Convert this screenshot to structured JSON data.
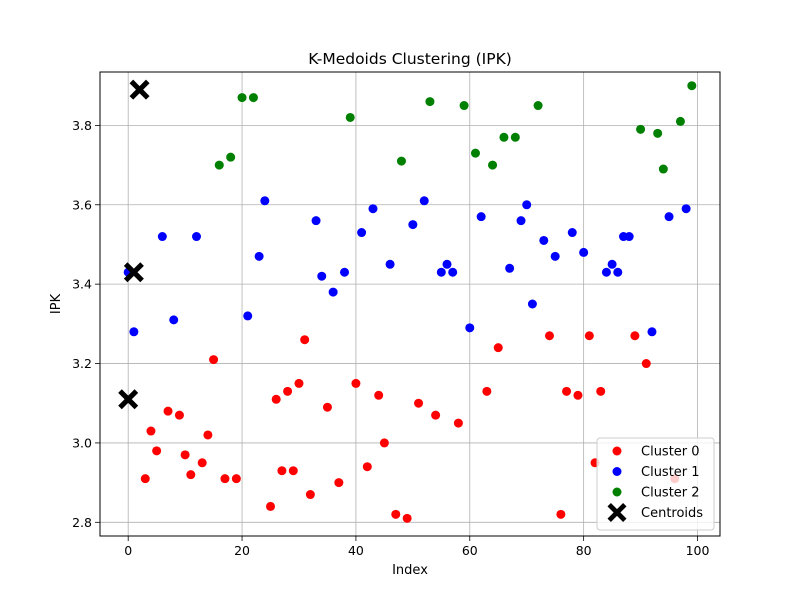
{
  "chart_data": {
    "type": "scatter",
    "title": "K-Medoids Clustering (IPK)",
    "xlabel": "Index",
    "ylabel": "IPK",
    "xlim": [
      -4.95,
      103.95
    ],
    "ylim": [
      2.7655,
      3.9345
    ],
    "xticks": [
      "0",
      "20",
      "40",
      "60",
      "80",
      "100"
    ],
    "yticks": [
      "2.8",
      "3.0",
      "3.2",
      "3.4",
      "3.6",
      "3.8"
    ],
    "grid": true,
    "legend_position": "lower-right",
    "colors": {
      "cluster0": "#ff0000",
      "cluster1": "#0000ff",
      "cluster2": "#008000",
      "centroids": "#000000"
    },
    "series": [
      {
        "name": "Cluster 0",
        "points": [
          [
            3,
            2.91
          ],
          [
            4,
            3.03
          ],
          [
            5,
            2.98
          ],
          [
            7,
            3.08
          ],
          [
            9,
            3.07
          ],
          [
            10,
            2.97
          ],
          [
            11,
            2.92
          ],
          [
            13,
            2.95
          ],
          [
            14,
            3.02
          ],
          [
            15,
            3.21
          ],
          [
            17,
            2.91
          ],
          [
            19,
            2.91
          ],
          [
            25,
            2.84
          ],
          [
            26,
            3.11
          ],
          [
            27,
            2.93
          ],
          [
            28,
            3.13
          ],
          [
            29,
            2.93
          ],
          [
            30,
            3.15
          ],
          [
            31,
            3.26
          ],
          [
            32,
            2.87
          ],
          [
            35,
            3.09
          ],
          [
            37,
            2.9
          ],
          [
            40,
            3.15
          ],
          [
            42,
            2.94
          ],
          [
            44,
            3.12
          ],
          [
            45,
            3.0
          ],
          [
            47,
            2.82
          ],
          [
            49,
            2.81
          ],
          [
            51,
            3.1
          ],
          [
            54,
            3.07
          ],
          [
            58,
            3.05
          ],
          [
            63,
            3.13
          ],
          [
            65,
            3.24
          ],
          [
            74,
            3.27
          ],
          [
            76,
            2.82
          ],
          [
            77,
            3.13
          ],
          [
            79,
            3.12
          ],
          [
            81,
            3.27
          ],
          [
            82,
            2.95
          ],
          [
            83,
            3.13
          ],
          [
            89,
            3.27
          ],
          [
            91,
            3.2
          ],
          [
            96,
            2.91
          ]
        ]
      },
      {
        "name": "Cluster 1",
        "points": [
          [
            0,
            3.43
          ],
          [
            1,
            3.28
          ],
          [
            6,
            3.52
          ],
          [
            8,
            3.31
          ],
          [
            12,
            3.52
          ],
          [
            21,
            3.32
          ],
          [
            23,
            3.47
          ],
          [
            24,
            3.61
          ],
          [
            33,
            3.56
          ],
          [
            34,
            3.42
          ],
          [
            36,
            3.38
          ],
          [
            38,
            3.43
          ],
          [
            41,
            3.53
          ],
          [
            43,
            3.59
          ],
          [
            46,
            3.45
          ],
          [
            50,
            3.55
          ],
          [
            52,
            3.61
          ],
          [
            55,
            3.43
          ],
          [
            56,
            3.45
          ],
          [
            57,
            3.43
          ],
          [
            60,
            3.29
          ],
          [
            62,
            3.57
          ],
          [
            67,
            3.44
          ],
          [
            69,
            3.56
          ],
          [
            70,
            3.6
          ],
          [
            71,
            3.35
          ],
          [
            73,
            3.51
          ],
          [
            75,
            3.47
          ],
          [
            78,
            3.53
          ],
          [
            80,
            3.48
          ],
          [
            84,
            3.43
          ],
          [
            85,
            3.45
          ],
          [
            86,
            3.43
          ],
          [
            87,
            3.52
          ],
          [
            88,
            3.52
          ],
          [
            92,
            3.28
          ],
          [
            95,
            3.57
          ],
          [
            98,
            3.59
          ]
        ]
      },
      {
        "name": "Cluster 2",
        "points": [
          [
            16,
            3.7
          ],
          [
            18,
            3.72
          ],
          [
            20,
            3.87
          ],
          [
            22,
            3.87
          ],
          [
            39,
            3.82
          ],
          [
            48,
            3.71
          ],
          [
            53,
            3.86
          ],
          [
            59,
            3.85
          ],
          [
            61,
            3.73
          ],
          [
            64,
            3.7
          ],
          [
            66,
            3.77
          ],
          [
            68,
            3.77
          ],
          [
            72,
            3.85
          ],
          [
            90,
            3.79
          ],
          [
            93,
            3.78
          ],
          [
            94,
            3.69
          ],
          [
            97,
            3.81
          ],
          [
            99,
            3.9
          ]
        ]
      },
      {
        "name": "Centroids",
        "points": [
          [
            0,
            3.11
          ],
          [
            1,
            3.43
          ],
          [
            2,
            3.89
          ]
        ]
      }
    ]
  }
}
